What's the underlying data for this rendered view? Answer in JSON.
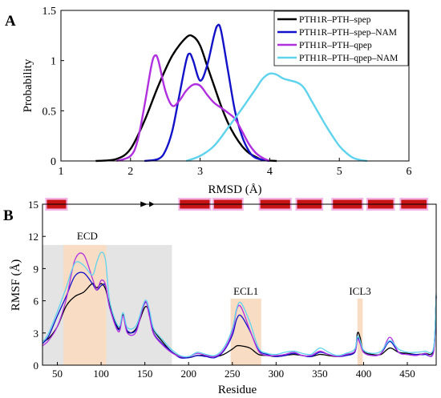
{
  "panels": {
    "a_label": "A",
    "b_label": "B"
  },
  "chart_data": [
    {
      "id": "A",
      "type": "line",
      "xlabel": "RMSD (Å)",
      "ylabel": "Probability",
      "xlim": [
        1,
        6
      ],
      "ylim": [
        0,
        1.5
      ],
      "xticks": [
        1,
        2,
        3,
        4,
        5,
        6
      ],
      "yticks": [
        0,
        0.5,
        1,
        1.5
      ],
      "grid": false,
      "legend": "top-right",
      "series": [
        {
          "name": "PTH1R–PTH–spep",
          "color": "#000000",
          "x": [
            1.5,
            1.8,
            2.0,
            2.2,
            2.4,
            2.6,
            2.8,
            2.9,
            3.0,
            3.1,
            3.2,
            3.3,
            3.4,
            3.5,
            3.6,
            3.7,
            3.8,
            3.9,
            4.1
          ],
          "y": [
            0,
            0.02,
            0.12,
            0.4,
            0.75,
            1.05,
            1.23,
            1.24,
            1.15,
            0.95,
            0.75,
            0.55,
            0.38,
            0.25,
            0.15,
            0.08,
            0.04,
            0.01,
            0
          ]
        },
        {
          "name": "PTH1R–PTH–spep–NAM",
          "color": "#1212c8",
          "x": [
            2.2,
            2.4,
            2.5,
            2.6,
            2.7,
            2.8,
            2.85,
            2.9,
            3.0,
            3.1,
            3.2,
            3.25,
            3.3,
            3.4,
            3.5,
            3.6,
            3.7,
            3.8,
            4.0
          ],
          "y": [
            0,
            0.02,
            0.1,
            0.3,
            0.65,
            1.0,
            1.07,
            1.0,
            0.8,
            0.95,
            1.25,
            1.35,
            1.3,
            0.9,
            0.5,
            0.25,
            0.1,
            0.03,
            0
          ]
        },
        {
          "name": "PTH1R–PTH–qpep",
          "color": "#b030e0",
          "x": [
            1.8,
            2.0,
            2.1,
            2.2,
            2.3,
            2.35,
            2.4,
            2.5,
            2.6,
            2.7,
            2.8,
            2.9,
            3.0,
            3.1,
            3.2,
            3.3,
            3.4,
            3.5,
            3.6,
            3.7,
            3.8,
            3.9,
            4.0
          ],
          "y": [
            0,
            0.05,
            0.2,
            0.55,
            0.95,
            1.05,
            1.0,
            0.7,
            0.55,
            0.6,
            0.7,
            0.76,
            0.75,
            0.66,
            0.58,
            0.53,
            0.48,
            0.42,
            0.3,
            0.17,
            0.08,
            0.03,
            0
          ]
        },
        {
          "name": "PTH1R–PTH–qpep–NAM",
          "color": "#5fd3ee",
          "x": [
            2.8,
            3.0,
            3.2,
            3.4,
            3.6,
            3.8,
            3.9,
            4.0,
            4.1,
            4.2,
            4.4,
            4.5,
            4.6,
            4.7,
            4.8,
            4.9,
            5.0,
            5.1,
            5.2,
            5.3,
            5.4
          ],
          "y": [
            0,
            0.05,
            0.15,
            0.33,
            0.52,
            0.72,
            0.82,
            0.87,
            0.86,
            0.82,
            0.78,
            0.72,
            0.6,
            0.48,
            0.36,
            0.25,
            0.15,
            0.08,
            0.03,
            0.01,
            0
          ]
        }
      ]
    },
    {
      "id": "B",
      "type": "line",
      "xlabel": "Residue",
      "ylabel": "RMSF (Å)",
      "xlim": [
        33,
        483
      ],
      "ylim": [
        0,
        15
      ],
      "xticks": [
        50,
        100,
        150,
        200,
        250,
        300,
        350,
        400,
        450
      ],
      "yticks": [
        0,
        3,
        6,
        9,
        12,
        15
      ],
      "regions": [
        {
          "label": "",
          "x0": 33,
          "x1": 181,
          "y1": 11.2,
          "color": "#e4e4e4"
        },
        {
          "label": "ECD",
          "x0": 57,
          "x1": 106,
          "y1": 11.2,
          "color": "#f8dcc4"
        },
        {
          "label": "ECL1",
          "x0": 248,
          "x1": 283,
          "y1": 6.2,
          "color": "#f8dcc4"
        },
        {
          "label": "ICL3",
          "x0": 393,
          "x1": 399,
          "y1": 6.2,
          "color": "#f8dcc4"
        }
      ],
      "helices": [
        [
          38,
          60
        ],
        [
          190,
          224
        ],
        [
          229,
          261
        ],
        [
          282,
          316
        ],
        [
          324,
          352
        ],
        [
          365,
          398
        ],
        [
          405,
          434
        ],
        [
          443,
          472
        ]
      ],
      "strand_arrows": [
        [
          145,
          153
        ],
        [
          155,
          161
        ]
      ],
      "series": [
        {
          "name": "PTH1R–PTH–spep",
          "color": "#000000",
          "x": [
            33,
            40,
            50,
            60,
            70,
            80,
            90,
            95,
            100,
            105,
            110,
            120,
            125,
            130,
            140,
            150,
            155,
            160,
            170,
            180,
            190,
            200,
            210,
            220,
            230,
            240,
            250,
            255,
            260,
            270,
            280,
            290,
            300,
            310,
            320,
            330,
            340,
            350,
            360,
            370,
            380,
            390,
            393,
            396,
            400,
            410,
            420,
            430,
            440,
            450,
            460,
            470,
            480,
            483
          ],
          "y": [
            2.2,
            2.5,
            3.6,
            5.5,
            6.4,
            6.8,
            7.6,
            7.2,
            7.6,
            7.1,
            5.6,
            3.4,
            4.7,
            3.1,
            3.4,
            5.4,
            4.9,
            3.3,
            2.2,
            1.3,
            0.8,
            0.7,
            0.9,
            0.9,
            0.8,
            1.0,
            1.5,
            1.8,
            1.8,
            1.6,
            1.0,
            0.9,
            0.8,
            0.9,
            1.0,
            0.9,
            0.8,
            1.0,
            0.9,
            0.8,
            1.0,
            1.3,
            3.0,
            2.6,
            1.3,
            1.0,
            1.0,
            1.6,
            1.2,
            1.1,
            1.0,
            1.1,
            1.5,
            6.5
          ]
        },
        {
          "name": "PTH1R–PTH–spep–NAM",
          "color": "#1212c8",
          "x": [
            33,
            40,
            50,
            60,
            70,
            80,
            90,
            95,
            100,
            105,
            110,
            120,
            125,
            130,
            140,
            150,
            155,
            160,
            170,
            180,
            190,
            200,
            210,
            220,
            230,
            240,
            250,
            255,
            260,
            270,
            280,
            290,
            300,
            310,
            320,
            330,
            340,
            350,
            360,
            370,
            380,
            390,
            393,
            396,
            400,
            410,
            420,
            430,
            440,
            450,
            460,
            470,
            480,
            483
          ],
          "y": [
            2.0,
            2.7,
            4.6,
            6.4,
            8.3,
            8.6,
            7.6,
            7.0,
            7.4,
            7.4,
            5.3,
            3.3,
            4.6,
            3.2,
            3.3,
            5.8,
            4.9,
            3.0,
            2.0,
            1.3,
            0.7,
            0.7,
            0.9,
            0.8,
            0.7,
            1.3,
            2.8,
            4.3,
            4.6,
            3.2,
            1.4,
            1.0,
            0.8,
            0.9,
            1.1,
            0.9,
            0.8,
            1.2,
            1.0,
            0.8,
            0.9,
            1.2,
            2.5,
            2.2,
            1.2,
            0.9,
            1.1,
            2.2,
            1.2,
            1.0,
            1.0,
            1.0,
            1.3,
            6.4
          ]
        },
        {
          "name": "PTH1R–PTH–qpep",
          "color": "#b030e0",
          "x": [
            33,
            40,
            50,
            60,
            70,
            80,
            90,
            95,
            100,
            105,
            110,
            120,
            125,
            130,
            140,
            150,
            155,
            160,
            170,
            180,
            190,
            200,
            210,
            220,
            230,
            240,
            250,
            255,
            260,
            270,
            280,
            290,
            300,
            310,
            320,
            330,
            340,
            350,
            360,
            370,
            380,
            390,
            393,
            396,
            400,
            410,
            420,
            430,
            440,
            450,
            460,
            470,
            480,
            483
          ],
          "y": [
            1.8,
            2.3,
            3.6,
            6.1,
            9.8,
            10.3,
            8.1,
            7.0,
            7.9,
            7.5,
            5.3,
            3.1,
            4.6,
            3.0,
            3.1,
            5.9,
            4.6,
            2.9,
            1.9,
            1.2,
            0.8,
            0.8,
            1.1,
            0.9,
            0.8,
            1.4,
            3.1,
            5.2,
            5.4,
            3.3,
            1.3,
            0.9,
            0.9,
            1.0,
            1.2,
            0.9,
            0.9,
            1.3,
            1.0,
            0.8,
            1.0,
            1.3,
            2.4,
            2.0,
            1.2,
            0.9,
            1.1,
            2.6,
            1.2,
            1.0,
            0.9,
            1.1,
            1.2,
            6.3
          ]
        },
        {
          "name": "PTH1R–PTH–qpep–NAM",
          "color": "#5fd3ee",
          "x": [
            33,
            40,
            50,
            60,
            70,
            80,
            90,
            95,
            100,
            105,
            110,
            120,
            125,
            130,
            140,
            150,
            155,
            160,
            170,
            180,
            190,
            200,
            210,
            220,
            230,
            240,
            250,
            255,
            260,
            270,
            280,
            290,
            300,
            310,
            320,
            330,
            340,
            350,
            360,
            370,
            380,
            390,
            393,
            396,
            400,
            410,
            420,
            430,
            440,
            450,
            460,
            470,
            480,
            483
          ],
          "y": [
            2.1,
            3.0,
            5.0,
            7.2,
            9.5,
            9.3,
            8.4,
            9.6,
            10.5,
            9.8,
            5.9,
            3.6,
            4.9,
            3.5,
            3.7,
            6.0,
            5.2,
            3.4,
            2.4,
            1.5,
            0.9,
            0.8,
            1.2,
            1.0,
            0.9,
            1.6,
            3.4,
            5.3,
            5.8,
            4.0,
            1.6,
            1.1,
            1.0,
            1.2,
            1.3,
            1.1,
            1.0,
            1.6,
            1.2,
            0.9,
            1.1,
            1.5,
            2.7,
            2.3,
            1.4,
            1.1,
            1.3,
            2.3,
            1.5,
            1.2,
            1.2,
            1.3,
            1.6,
            6.7
          ]
        }
      ]
    }
  ]
}
